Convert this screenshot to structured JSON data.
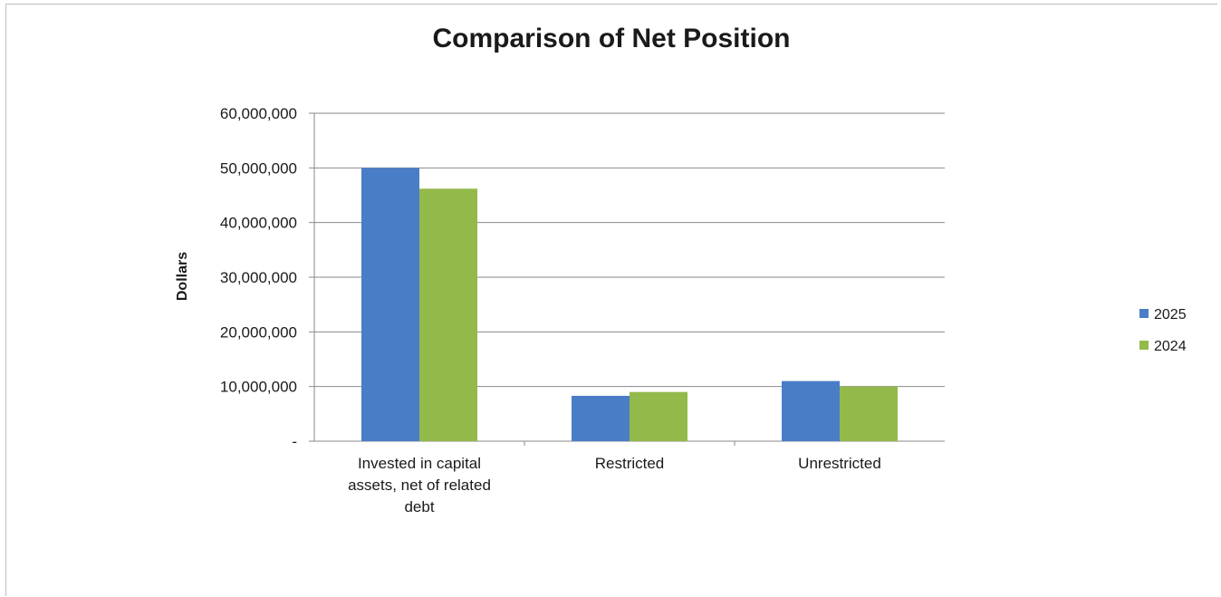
{
  "chart_data": {
    "type": "bar",
    "title": "Comparison of Net Position",
    "xlabel": "",
    "ylabel": "Dollars",
    "categories": [
      [
        "Invested in capital",
        "assets, net of related",
        "debt"
      ],
      [
        "Restricted"
      ],
      [
        "Unrestricted"
      ]
    ],
    "series": [
      {
        "name": "2025",
        "color": "#4a7dc8",
        "values": [
          50000000,
          8300000,
          11000000
        ]
      },
      {
        "name": "2024",
        "color": "#93b94a",
        "values": [
          46200000,
          9000000,
          10000000
        ]
      }
    ],
    "ylim": [
      0,
      60000000
    ],
    "yticks": [
      {
        "value": 0,
        "label": "-"
      },
      {
        "value": 10000000,
        "label": "10,000,000"
      },
      {
        "value": 20000000,
        "label": "20,000,000"
      },
      {
        "value": 30000000,
        "label": "30,000,000"
      },
      {
        "value": 40000000,
        "label": "40,000,000"
      },
      {
        "value": 50000000,
        "label": "50,000,000"
      },
      {
        "value": 60000000,
        "label": "60,000,000"
      }
    ],
    "grid": true,
    "legend_position": "right"
  }
}
